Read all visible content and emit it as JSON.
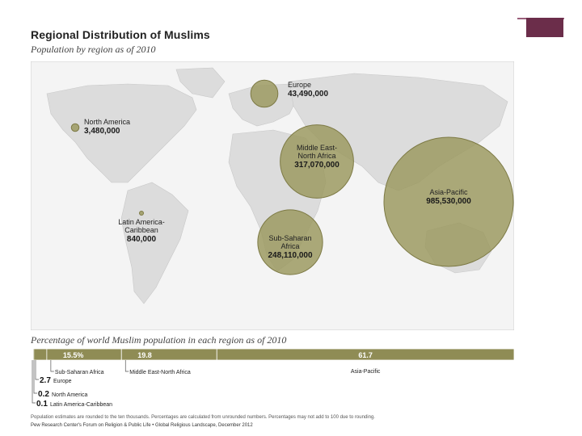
{
  "header": {
    "title": "Regional Distribution of Muslims",
    "subtitle": "Population by region as of 2010"
  },
  "colors": {
    "accent": "#6b2d4a",
    "bubble_fill": "#9c9a62",
    "bubble_stroke": "#7d7a45",
    "bar": "#8f8c55",
    "map_land": "#e3e3e3",
    "map_ocean": "#ffffff"
  },
  "chart_data": [
    {
      "type": "scatter",
      "title": "Regional Distribution of Muslims",
      "subtitle": "Population by region as of 2010",
      "series": [
        {
          "label_lines": [
            "Europe"
          ],
          "value_label": "43,490,000",
          "value": 43490000
        },
        {
          "label_lines": [
            "North America"
          ],
          "value_label": "3,480,000",
          "value": 3480000
        },
        {
          "label_lines": [
            "Middle East-",
            "North Africa"
          ],
          "value_label": "317,070,000",
          "value": 317070000
        },
        {
          "label_lines": [
            "Asia-Pacific"
          ],
          "value_label": "985,530,000",
          "value": 985530000
        },
        {
          "label_lines": [
            "Latin America-",
            "Caribbean"
          ],
          "value_label": "840,000",
          "value": 840000
        },
        {
          "label_lines": [
            "Sub-Saharan",
            "Africa"
          ],
          "value_label": "248,110,000",
          "value": 248110000
        }
      ]
    },
    {
      "type": "bar",
      "title": "Percentage of world Muslim population in each region as of 2010",
      "segments": [
        {
          "name": "Latin America-Caribbean",
          "value": 0.1,
          "value_label": "0.1"
        },
        {
          "name": "North America",
          "value": 0.2,
          "value_label": "0.2"
        },
        {
          "name": "Europe",
          "value": 2.7,
          "value_label": "2.7"
        },
        {
          "name": "Sub-Saharan Africa",
          "value": 15.5,
          "value_label": "15.5%"
        },
        {
          "name": "Middle East-North Africa",
          "value": 19.8,
          "value_label": "19.8"
        },
        {
          "name": "Asia-Pacific",
          "value": 61.7,
          "value_label": "61.7"
        }
      ]
    }
  ],
  "footer": {
    "note": "Population estimates are rounded to the ten thousands. Percentages are calculated from unrounded numbers. Percentages may not add to 100 due to rounding.",
    "source": "Pew Research Center's Forum on Religion & Public Life • Global Religious Landscape, December 2012"
  }
}
